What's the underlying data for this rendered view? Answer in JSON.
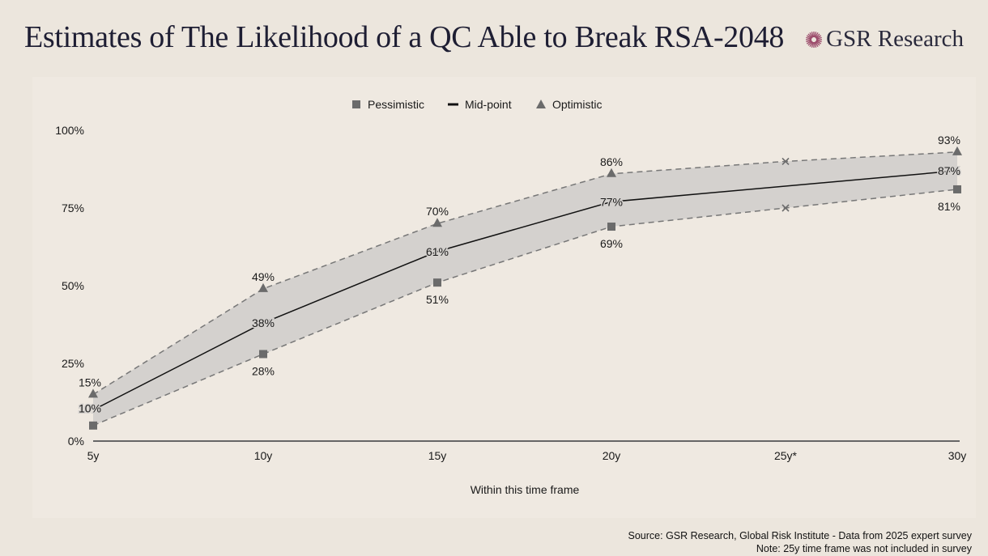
{
  "header": {
    "title": "Estimates of The Likelihood of a QC Able to Break RSA-2048",
    "logo_text": "GSR Research"
  },
  "colors": {
    "band": "#d4d1ce",
    "marker": "#6b6b6b",
    "midline": "#111111",
    "logo_accent": "#9b4a6a"
  },
  "chart_data": {
    "type": "line",
    "title": "",
    "xlabel": "Within this time frame",
    "ylabel": "",
    "categories": [
      "5y",
      "10y",
      "15y",
      "20y",
      "25y*",
      "30y"
    ],
    "yticks": [
      "0%",
      "25%",
      "50%",
      "75%",
      "100%"
    ],
    "ylim": [
      0,
      100
    ],
    "legend_position": "top-center",
    "grid": false,
    "series": [
      {
        "name": "Pessimistic",
        "marker": "square",
        "values": [
          5,
          28,
          51,
          69,
          75,
          81
        ],
        "labels": [
          "",
          "28%",
          "51%",
          "69%",
          "",
          "81%"
        ]
      },
      {
        "name": "Mid-point",
        "marker": "line",
        "values": [
          10,
          38,
          61,
          77,
          null,
          87
        ],
        "labels": [
          "10%",
          "38%",
          "61%",
          "77%",
          "",
          "87%"
        ]
      },
      {
        "name": "Optimistic",
        "marker": "triangle",
        "values": [
          15,
          49,
          70,
          86,
          90,
          93
        ],
        "labels": [
          "15%",
          "49%",
          "70%",
          "86%",
          "",
          "93%"
        ]
      }
    ]
  },
  "footer": {
    "source": "Source: GSR Research, Global Risk Institute  - Data from 2025 expert survey",
    "note": "Note: 25y time frame was not included in survey"
  }
}
